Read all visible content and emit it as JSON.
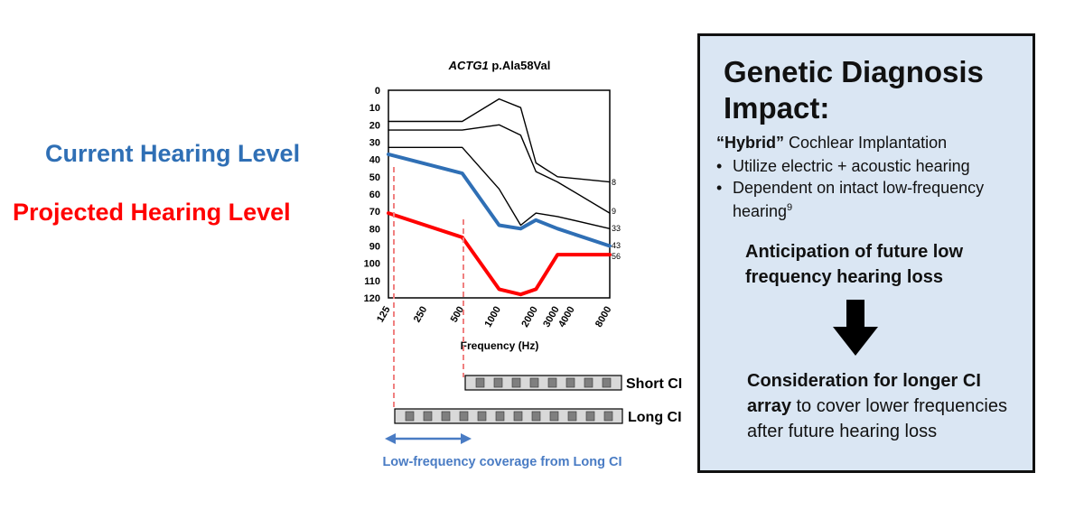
{
  "side_labels": {
    "current": "Current Hearing Level",
    "projected": "Projected Hearing Level"
  },
  "colors": {
    "current": "#2f6fb5",
    "projected": "#ff0000",
    "family": "#000000",
    "box_bg": "#dae6f3",
    "coverage": "#4a7cc4",
    "guide": "#f08080"
  },
  "chart_data": {
    "type": "line",
    "title_gene": "ACTG1",
    "title_variant": " p.Ala58Val",
    "xlabel": "Frequency (Hz)",
    "ylabel": "",
    "categories": [
      "125",
      "250",
      "500",
      "1000",
      "2000",
      "3000",
      "4000",
      "8000"
    ],
    "y_ticks": [
      "0",
      "10",
      "20",
      "30",
      "40",
      "50",
      "60",
      "70",
      "80",
      "90",
      "100",
      "110",
      "120"
    ],
    "ylim": [
      0,
      120
    ],
    "y_inverted": true,
    "series": [
      {
        "key": "family_a",
        "end_label": "8",
        "color": "#000000",
        "points": [
          [
            125,
            18
          ],
          [
            500,
            18
          ],
          [
            1000,
            5
          ],
          [
            1500,
            10
          ],
          [
            2000,
            42
          ],
          [
            3000,
            50
          ],
          [
            8000,
            53
          ]
        ]
      },
      {
        "key": "family_b",
        "end_label": "9",
        "color": "#000000",
        "points": [
          [
            125,
            23
          ],
          [
            500,
            23
          ],
          [
            1000,
            20
          ],
          [
            1500,
            26
          ],
          [
            2000,
            47
          ],
          [
            3000,
            53
          ],
          [
            8000,
            71
          ]
        ]
      },
      {
        "key": "family_c",
        "end_label": "33",
        "color": "#000000",
        "points": [
          [
            125,
            33
          ],
          [
            500,
            33
          ],
          [
            1000,
            57
          ],
          [
            1500,
            78
          ],
          [
            2000,
            71
          ],
          [
            3000,
            73
          ],
          [
            8000,
            80
          ]
        ]
      },
      {
        "key": "current",
        "end_label": "43",
        "color": "#2f6fb5",
        "points": [
          [
            125,
            37
          ],
          [
            500,
            48
          ],
          [
            1000,
            78
          ],
          [
            1500,
            80
          ],
          [
            2000,
            75
          ],
          [
            3000,
            80
          ],
          [
            8000,
            90
          ]
        ]
      },
      {
        "key": "projected",
        "end_label": "56",
        "color": "#ff0000",
        "points": [
          [
            125,
            71
          ],
          [
            500,
            85
          ],
          [
            1000,
            115
          ],
          [
            1500,
            118
          ],
          [
            2000,
            115
          ],
          [
            3000,
            95
          ],
          [
            8000,
            95
          ]
        ]
      }
    ],
    "grid": false,
    "legend": "none"
  },
  "ci": {
    "short_label": "Short CI",
    "long_label": "Long CI",
    "coverage_text": "Low-frequency coverage from Long CI"
  },
  "impact": {
    "title": "Genetic Diagnosis Impact:",
    "hybrid_bold": "“Hybrid”",
    "hybrid_rest": " Cochlear Implantation",
    "bullet_symbol": "•",
    "bullet_1": "Utilize electric + acoustic hearing",
    "bullet_2_text": "Dependent on intact low-frequency hearing",
    "bullet_2_sup": "9",
    "anticipation": "Anticipation of future low frequency hearing loss",
    "consideration_bold": "Consideration for longer CI array",
    "consideration_rest": " to cover lower frequencies after future hearing loss"
  }
}
